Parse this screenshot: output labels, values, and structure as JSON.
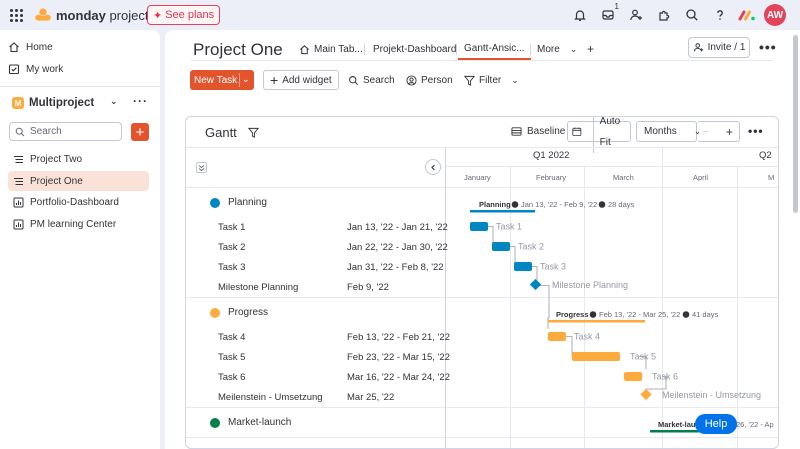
{
  "topbar": {
    "brand_bold": "monday",
    "brand_rest": " projects",
    "see_plans": "See plans",
    "notification_count": "1",
    "avatar": "AW",
    "icons": [
      "grid-icon",
      "bell-icon",
      "inbox-icon",
      "invite-members-icon",
      "integrations-icon",
      "search-icon",
      "help-icon"
    ]
  },
  "sidebar": {
    "home": "Home",
    "mywork": "My work",
    "workspace_letter": "M",
    "workspace": "Multiproject",
    "search_placeholder": "Search",
    "add": "+",
    "boards": [
      {
        "label": "Project Two",
        "icon": "board-icon"
      },
      {
        "label": "Project One",
        "icon": "board-icon",
        "active": true
      },
      {
        "label": "Portfolio-Dashboard",
        "icon": "dashboard-icon"
      },
      {
        "label": "PM learning Center",
        "icon": "dashboard-icon"
      }
    ]
  },
  "main": {
    "title": "Project One",
    "tabs": [
      {
        "label": "Main Tab..."
      },
      {
        "label": "Projekt-Dashboard"
      },
      {
        "label": "Gantt-Ansic..."
      },
      {
        "label": "More"
      }
    ],
    "add_tab": "+",
    "invite": "Invite / 1",
    "more": "•••"
  },
  "toolbar": {
    "new_task": "New Task",
    "add_widget": "Add widget",
    "search": "Search",
    "person": "Person",
    "filter": "Filter"
  },
  "gantt": {
    "title": "Gantt",
    "baseline": "Baseline",
    "autofit": "Auto Fit",
    "scale": "Months",
    "minus": "–",
    "plus": "+",
    "more": "•••",
    "quarters": [
      "Q1 2022",
      "Q2"
    ],
    "months": [
      "January",
      "February",
      "March",
      "April",
      "M"
    ],
    "groups": [
      {
        "name": "Planning",
        "color": "#0086c0",
        "summary_label": "Planning",
        "summary_dates": "Jan 13, '22 - Feb 9, '22",
        "summary_days": "28 days",
        "items": [
          {
            "name": "Task 1",
            "dates": "Jan 13, '22 - Jan 21, '22"
          },
          {
            "name": "Task 2",
            "dates": "Jan 22, '22 - Jan 30, '22"
          },
          {
            "name": "Task 3",
            "dates": "Jan 31, '22 - Feb 8, '22"
          },
          {
            "name": "Milestone Planning",
            "dates": "Feb 9, '22",
            "milestone": true
          }
        ]
      },
      {
        "name": "Progress",
        "color": "#fdab3d",
        "summary_label": "Progress",
        "summary_dates": "Feb 13, '22 - Mar 25, '22",
        "summary_days": "41 days",
        "items": [
          {
            "name": "Task 4",
            "dates": "Feb 13, '22 - Feb 21, '22"
          },
          {
            "name": "Task 5",
            "dates": "Feb 23, '22 - Mar 15, '22"
          },
          {
            "name": "Task 6",
            "dates": "Mar 16, '22 - Mar 24, '22"
          },
          {
            "name": "Meilenstein - Umsetzung",
            "dates": "Mar 25, '22",
            "milestone": true
          }
        ]
      },
      {
        "name": "Market-launch",
        "color": "#037f4c",
        "summary_label": "Market-lau",
        "summary_dates": "26, '22 - Ap",
        "items": []
      }
    ]
  },
  "help": "Help"
}
